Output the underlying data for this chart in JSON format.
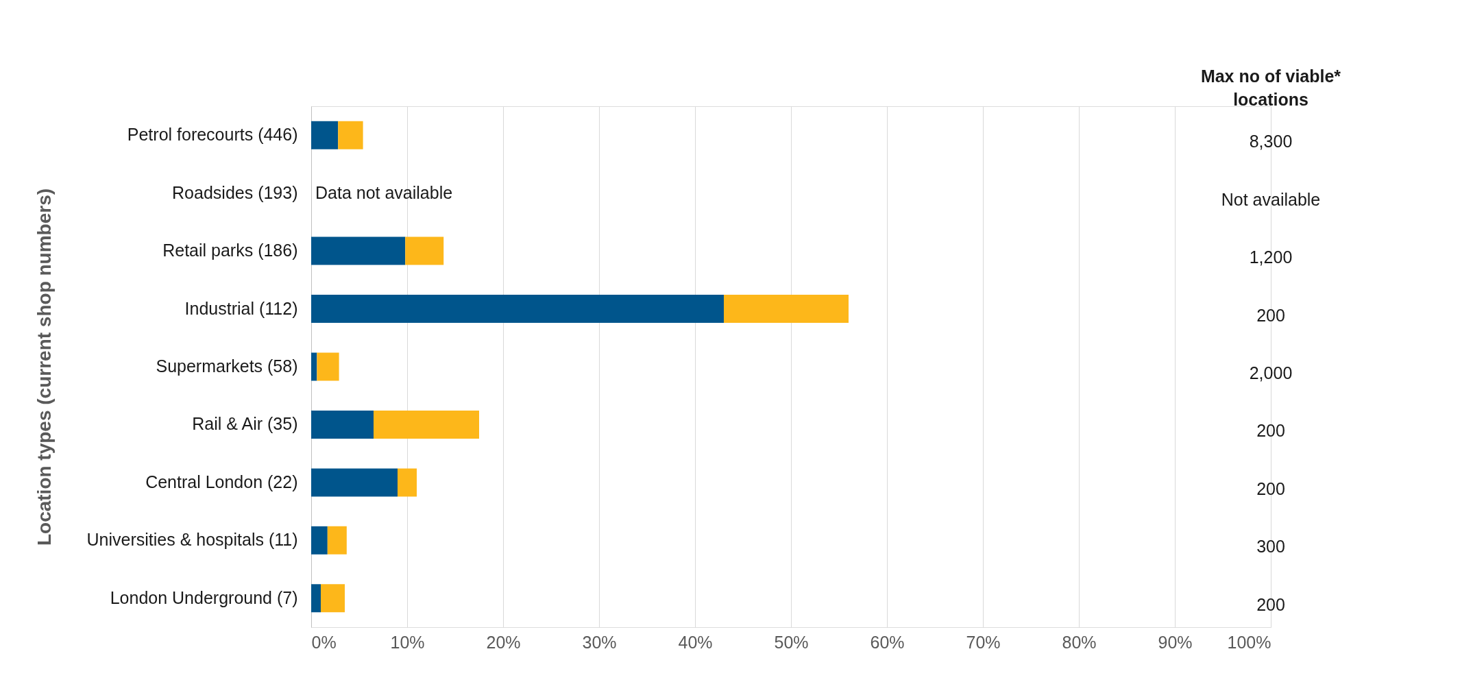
{
  "chart_data": {
    "type": "bar",
    "orientation": "horizontal",
    "stacked": true,
    "ylabel": "Location types  (current shop numbers)",
    "categories": [
      "Petrol forecourts (446)",
      "Roadsides (193)",
      "Retail parks (186)",
      "Industrial (112)",
      "Supermarkets (58)",
      "Rail & Air (35)",
      "Central London (22)",
      "Universities & hospitals (11)",
      "London Underground (7)"
    ],
    "series": [
      {
        "color": "#00558c",
        "values": [
          2.8,
          null,
          9.8,
          43,
          0.6,
          6.5,
          9.0,
          1.7,
          1.0
        ]
      },
      {
        "color": "#fdb71a",
        "values": [
          2.6,
          null,
          4.0,
          13,
          2.3,
          11.0,
          2.0,
          2.0,
          2.5
        ]
      }
    ],
    "xlim": [
      0,
      100
    ],
    "xticks": [
      {
        "value": 0,
        "label": "0%"
      },
      {
        "value": 10,
        "label": "10%"
      },
      {
        "value": 20,
        "label": "20%"
      },
      {
        "value": 30,
        "label": "30%"
      },
      {
        "value": 40,
        "label": "40%"
      },
      {
        "value": 50,
        "label": "50%"
      },
      {
        "value": 60,
        "label": "60%"
      },
      {
        "value": 70,
        "label": "70%"
      },
      {
        "value": 80,
        "label": "80%"
      },
      {
        "value": 90,
        "label": "90%"
      },
      {
        "value": 100,
        "label": "100%"
      }
    ],
    "grid": "x",
    "legend": false,
    "annotations": [
      "Data not available",
      "Max no of viable* locations",
      "8,300",
      "Not available",
      "1,200",
      "200",
      "2,000",
      "200",
      "200",
      "300",
      "200"
    ]
  }
}
